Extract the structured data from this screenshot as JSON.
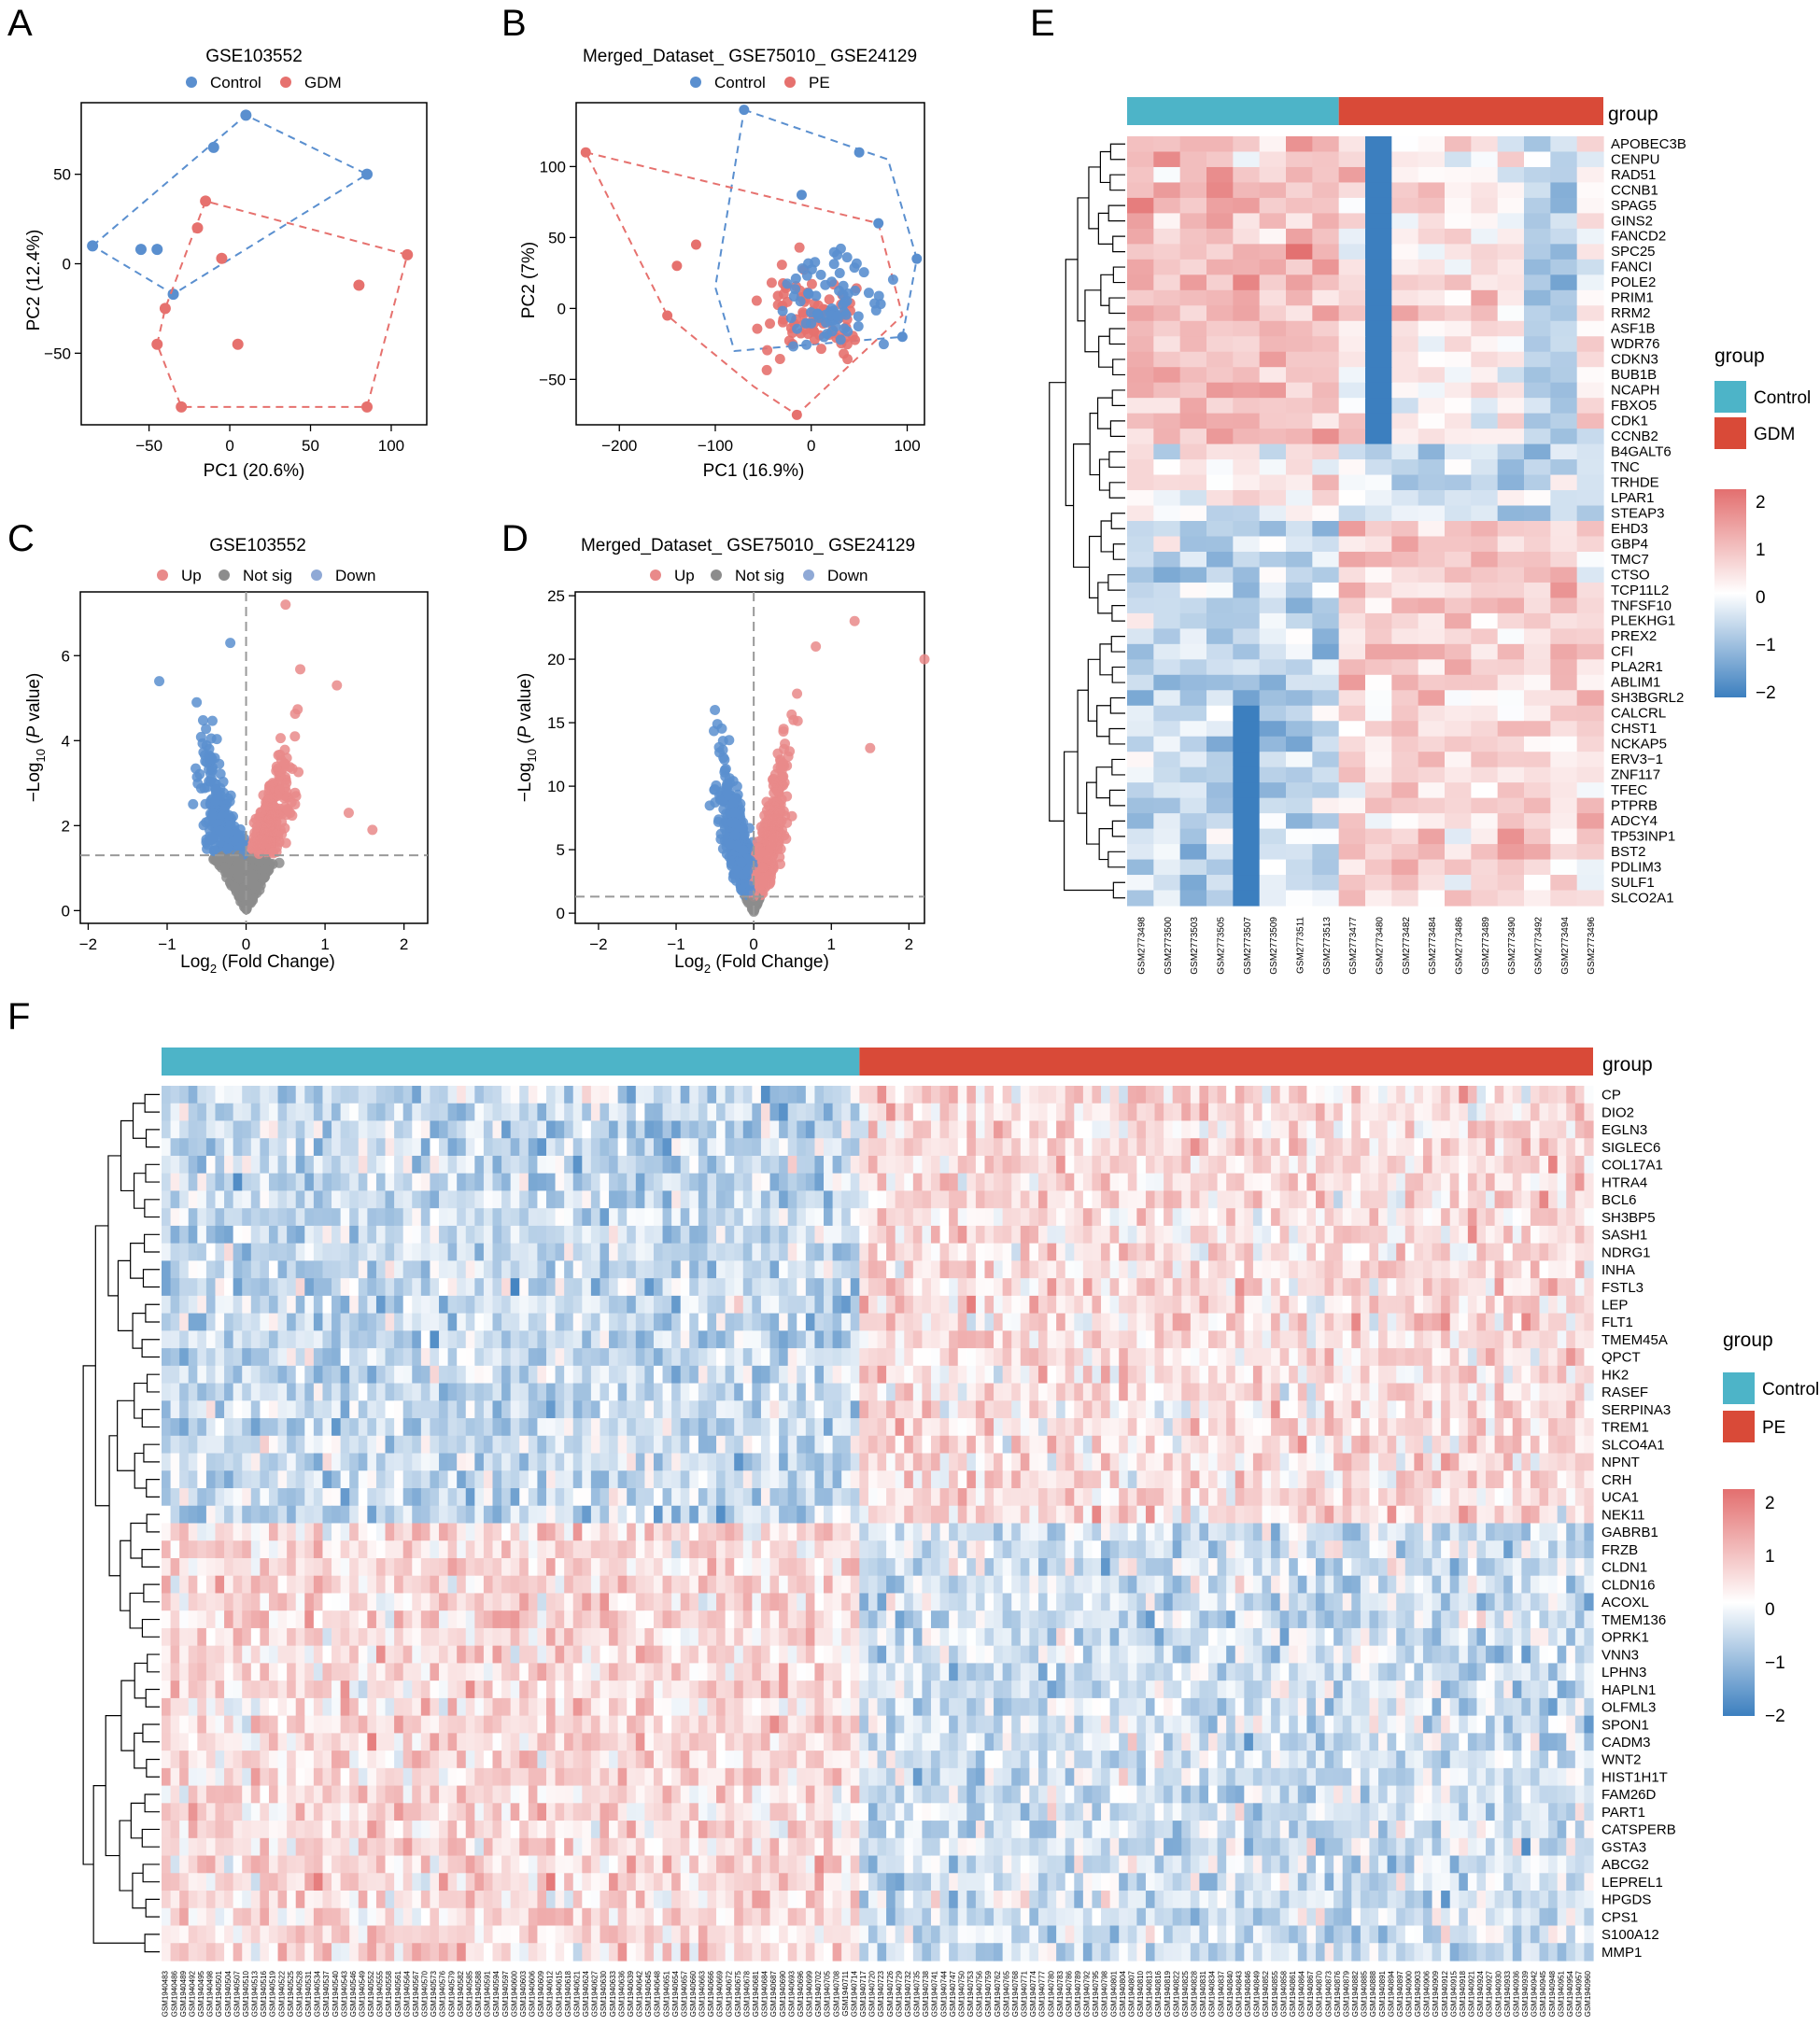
{
  "colors": {
    "control": "#4DB4C8",
    "case_group": "#D94A38",
    "pca_blue": "#5A8FCF",
    "pca_red": "#E6716E",
    "up": "#E98A8A",
    "down": "#5B8FCF",
    "notsig": "#8C8C8C",
    "heat_low": "#3C7FBF",
    "heat_mid": "#FFFFFF",
    "heat_high": "#E36F6F"
  },
  "chart_data": [
    {
      "panel": "A",
      "type": "scatter",
      "title": "GSE103552",
      "legend": [
        "Control",
        "GDM"
      ],
      "xlabel": "PC1 (20.6%)",
      "ylabel": "PC2 (12.4%)",
      "xlim": [
        -92,
        122
      ],
      "ylim": [
        -90,
        90
      ],
      "xticks": [
        -50,
        0,
        50,
        100
      ],
      "yticks": [
        -50,
        0,
        50
      ],
      "series": [
        {
          "name": "Control",
          "points": [
            [
              -85,
              10
            ],
            [
              -55,
              8
            ],
            [
              -45,
              8
            ],
            [
              -35,
              -17
            ],
            [
              -10,
              65
            ],
            [
              10,
              83
            ],
            [
              85,
              50
            ]
          ],
          "hull": [
            [
              -85,
              10
            ],
            [
              10,
              83
            ],
            [
              85,
              50
            ],
            [
              -35,
              -17
            ]
          ]
        },
        {
          "name": "GDM",
          "points": [
            [
              -30,
              -80
            ],
            [
              -45,
              -45
            ],
            [
              -40,
              -25
            ],
            [
              -15,
              35
            ],
            [
              -5,
              3
            ],
            [
              -20,
              20
            ],
            [
              5,
              -45
            ],
            [
              80,
              -12
            ],
            [
              110,
              5
            ],
            [
              85,
              -80
            ]
          ],
          "hull": [
            [
              -45,
              -45
            ],
            [
              -40,
              -25
            ],
            [
              -15,
              35
            ],
            [
              110,
              5
            ],
            [
              85,
              -80
            ],
            [
              -30,
              -80
            ]
          ]
        }
      ]
    },
    {
      "panel": "B",
      "type": "scatter",
      "title": "Merged_Dataset_ GSE75010_ GSE24129",
      "legend": [
        "Control",
        "PE"
      ],
      "xlabel": "PC1 (16.9%)",
      "ylabel": "PC2 (7%)",
      "xlim": [
        -245,
        118
      ],
      "ylim": [
        -82,
        145
      ],
      "xticks": [
        -200,
        -100,
        0,
        100
      ],
      "yticks": [
        -50,
        0,
        50,
        100
      ],
      "series": [
        {
          "name": "Control",
          "hull": [
            [
              -70,
              140
            ],
            [
              80,
              105
            ],
            [
              110,
              35
            ],
            [
              95,
              -20
            ],
            [
              -80,
              -30
            ],
            [
              -100,
              15
            ]
          ]
        },
        {
          "name": "PE",
          "hull": [
            [
              -235,
              110
            ],
            [
              70,
              60
            ],
            [
              95,
              -5
            ],
            [
              -15,
              -75
            ],
            [
              -60,
              -55
            ],
            [
              -150,
              -5
            ]
          ]
        }
      ]
    },
    {
      "panel": "C",
      "type": "scatter",
      "title": "GSE103552",
      "legend": [
        "Up",
        "Not sig",
        "Down"
      ],
      "xlabel": "Log2 (Fold Change)",
      "ylabel": "−Log10 (P value)",
      "xlim": [
        -2.1,
        2.3
      ],
      "ylim": [
        -0.3,
        7.5
      ],
      "xticks": [
        -2,
        -1,
        0,
        1,
        2
      ],
      "yticks": [
        0,
        2,
        4,
        6
      ],
      "threshold_y": 1.3,
      "threshold_x": 0,
      "labels_text": {
        "xlabel_main": "Log",
        "xlabel_sub": "2",
        "xlabel_rest": " (Fold Change)",
        "ylabel_pre": "−Log",
        "ylabel_sub": "10",
        "ylabel_open": " (",
        "ylabel_p": "P",
        "ylabel_rest": " value)"
      }
    },
    {
      "panel": "D",
      "type": "scatter",
      "title": "Merged_Dataset_ GSE75010_ GSE24129",
      "legend": [
        "Up",
        "Not sig",
        "Down"
      ],
      "xlabel": "Log2 (Fold Change)",
      "ylabel": "−Log10 (P value)",
      "xlim": [
        -2.3,
        2.2
      ],
      "ylim": [
        -0.8,
        25.3
      ],
      "xticks": [
        -2,
        -1,
        0,
        1,
        2
      ],
      "yticks": [
        0,
        5,
        10,
        15,
        20,
        25
      ],
      "threshold_y": 1.3,
      "threshold_x": 0
    },
    {
      "panel": "E",
      "type": "heatmap",
      "group_title": "group",
      "legend_groups": [
        "Control",
        "GDM"
      ],
      "scale_ticks": [
        "2",
        "1",
        "0",
        "−1",
        "−2"
      ],
      "n_control": 8,
      "genes": [
        "APOBEC3B",
        "CENPU",
        "RAD51",
        "CCNB1",
        "SPAG5",
        "GINS2",
        "FANCD2",
        "SPC25",
        "FANCI",
        "POLE2",
        "PRIM1",
        "RRM2",
        "ASF1B",
        "WDR76",
        "CDKN3",
        "BUB1B",
        "NCAPH",
        "FBXO5",
        "CDK1",
        "CCNB2",
        "B4GALT6",
        "TNC",
        "TRHDE",
        "LPAR1",
        "STEAP3",
        "EHD3",
        "GBP4",
        "TMC7",
        "CTSO",
        "TCP11L2",
        "TNFSF10",
        "PLEKHG1",
        "PREX2",
        "CFI",
        "PLA2R1",
        "ABLIM1",
        "SH3BGRL2",
        "CALCRL",
        "CHST1",
        "NCKAP5",
        "ERV3−1",
        "ZNF117",
        "TFEC",
        "PTPRB",
        "ADCY4",
        "TP53INP1",
        "BST2",
        "PDLIM3",
        "SULF1",
        "SLCO2A1"
      ],
      "samples": [
        "GSM2773498",
        "GSM2773500",
        "GSM2773503",
        "GSM2773505",
        "GSM2773507",
        "GSM2773509",
        "GSM2773511",
        "GSM2773513",
        "GSM2773477",
        "GSM2773480",
        "GSM2773482",
        "GSM2773484",
        "GSM2773486",
        "GSM2773489",
        "GSM2773490",
        "GSM2773492",
        "GSM2773494",
        "GSM2773496"
      ]
    },
    {
      "panel": "F",
      "type": "heatmap",
      "group_title": "group",
      "legend_groups": [
        "Control",
        "PE"
      ],
      "scale_ticks": [
        "2",
        "1",
        "0",
        "−1",
        "−2"
      ],
      "n_columns": 160,
      "n_control": 78,
      "n_up_genes": 25,
      "genes": [
        "CP",
        "DIO2",
        "EGLN3",
        "SIGLEC6",
        "COL17A1",
        "HTRA4",
        "BCL6",
        "SH3BP5",
        "SASH1",
        "NDRG1",
        "INHA",
        "FSTL3",
        "LEP",
        "FLT1",
        "TMEM45A",
        "QPCT",
        "HK2",
        "RASEF",
        "SERPINA3",
        "TREM1",
        "SLCO4A1",
        "NPNT",
        "CRH",
        "UCA1",
        "NEK11",
        "GABRB1",
        "FRZB",
        "CLDN1",
        "CLDN16",
        "ACOXL",
        "TMEM136",
        "OPRK1",
        "VNN3",
        "LPHN3",
        "HAPLN1",
        "OLFML3",
        "SPON1",
        "CADM3",
        "WNT2",
        "HIST1H1T",
        "FAM26D",
        "PART1",
        "CATSPERB",
        "GSTA3",
        "ABCG2",
        "LEPREL1",
        "HPGDS",
        "CPS1",
        "S100A12",
        "MMP1"
      ],
      "sample_id_start": 1940483
    }
  ],
  "panels": {
    "a": "A",
    "b": "B",
    "c": "C",
    "d": "D",
    "e": "E",
    "f": "F"
  }
}
